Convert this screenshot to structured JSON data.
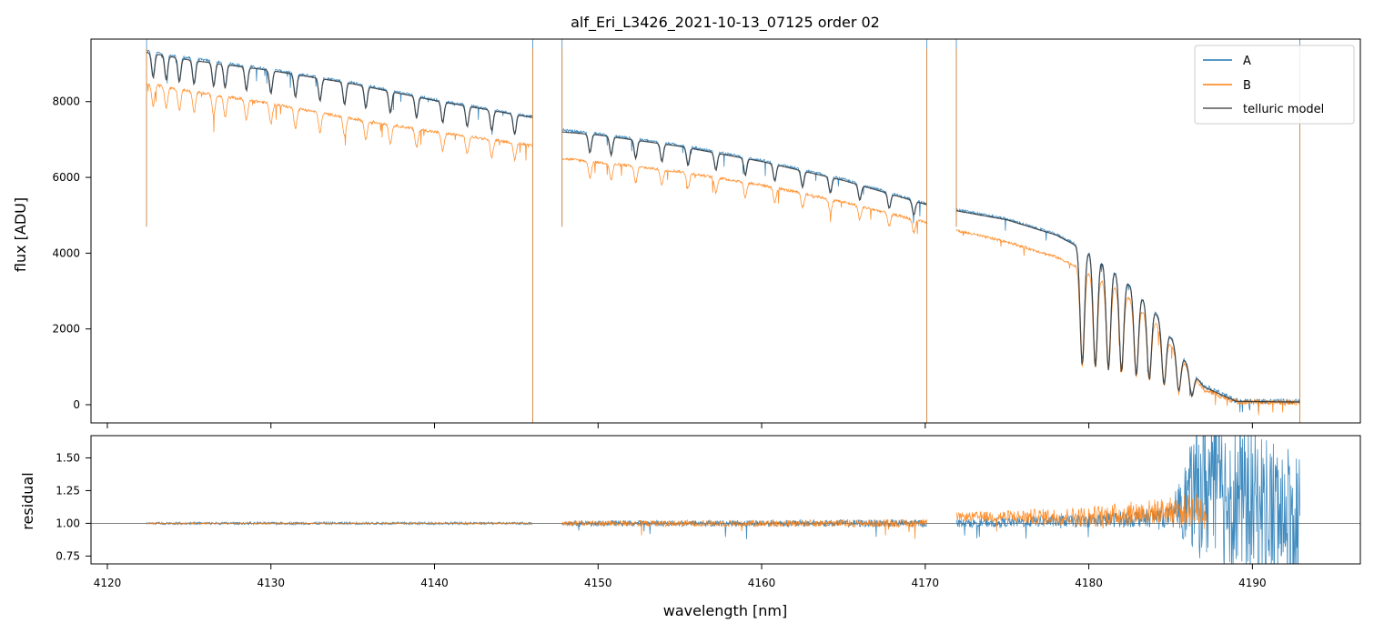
{
  "chart_data": [
    {
      "type": "line",
      "title": "alf_Eri_L3426_2021-10-13_07125  order 02",
      "xlabel": "",
      "ylabel": "flux [ADU]",
      "xlim": [
        4119,
        4196.6
      ],
      "ylim": [
        -480,
        9650
      ],
      "yticks": [
        0,
        2000,
        4000,
        6000,
        8000
      ],
      "ytick_labels": [
        "0",
        "2000",
        "4000",
        "6000",
        "8000"
      ],
      "xticks": [
        4120,
        4130,
        4140,
        4150,
        4160,
        4170,
        4180,
        4190
      ],
      "legend": {
        "location": "top-right",
        "entries": [
          "A",
          "B",
          "telluric model"
        ]
      },
      "colors": {
        "A": "#1f77b4",
        "B": "#ff7f0e",
        "telluric model": "#333333"
      },
      "segments": [
        [
          4122.4,
          4146.0
        ],
        [
          4147.8,
          4170.1
        ],
        [
          4171.9,
          4192.9
        ]
      ],
      "series": [
        {
          "name": "A",
          "x": [
            4122.4,
            4125,
            4130,
            4135,
            4140,
            4146.0,
            4147.8,
            4150,
            4155,
            4160,
            4165,
            4170.1,
            4171.9,
            4175,
            4178,
            4180,
            4182,
            4184,
            4186,
            4187,
            4189,
            4192.9
          ],
          "values": [
            9350,
            9150,
            8850,
            8500,
            8050,
            7600,
            7250,
            7150,
            6850,
            6450,
            5950,
            5300,
            5150,
            4900,
            4500,
            4050,
            3400,
            2500,
            1100,
            500,
            100,
            80
          ]
        },
        {
          "name": "B",
          "x": [
            4122.4,
            4125,
            4130,
            4135,
            4140,
            4146.0,
            4147.8,
            4150,
            4155,
            4160,
            4165,
            4170.1,
            4171.9,
            4175,
            4178,
            4180,
            4182,
            4184,
            4186,
            4187,
            4189,
            4192.9
          ],
          "values": [
            8480,
            8280,
            7950,
            7550,
            7200,
            6850,
            6500,
            6400,
            6150,
            5800,
            5350,
            4800,
            4600,
            4300,
            3900,
            3500,
            3000,
            2200,
            1000,
            400,
            80,
            60
          ]
        },
        {
          "name": "telluric model",
          "x": [
            4122.4,
            4125,
            4130,
            4135,
            4140,
            4146.0,
            4147.8,
            4150,
            4155,
            4160,
            4165,
            4170.1,
            4171.9,
            4175,
            4178,
            4180,
            4182,
            4184,
            4186,
            4187,
            4189,
            4192.9
          ],
          "values": [
            9300,
            9100,
            8820,
            8470,
            8030,
            7580,
            7200,
            7120,
            6820,
            6420,
            5920,
            5280,
            5120,
            4880,
            4480,
            4020,
            3380,
            2480,
            1080,
            480,
            90,
            70
          ]
        }
      ],
      "absorption_lines_nm": [
        4122.8,
        4123.6,
        4124.4,
        4125.3,
        4126.5,
        4127.2,
        4128.5,
        4130.0,
        4131.5,
        4133.0,
        4134.5,
        4135.8,
        4137.3,
        4138.9,
        4140.5,
        4142.0,
        4143.5,
        4144.9,
        4149.5,
        4150.8,
        4152.3,
        4153.9,
        4155.5,
        4157.2,
        4159.0,
        4160.8,
        4162.5,
        4164.2,
        4166.0,
        4167.8,
        4169.3,
        4179.6,
        4180.4,
        4181.2,
        4182.0,
        4182.9,
        4183.7,
        4184.6,
        4185.5,
        4186.3
      ]
    },
    {
      "type": "line",
      "title": "",
      "xlabel": "wavelength [nm]",
      "ylabel": "residual",
      "xlim": [
        4119,
        4196.6
      ],
      "ylim": [
        0.69,
        1.67
      ],
      "yticks": [
        0.75,
        1.0,
        1.25,
        1.5
      ],
      "ytick_labels": [
        "0.75",
        "1.00",
        "1.25",
        "1.50"
      ],
      "xticks": [
        4120,
        4130,
        4140,
        4150,
        4160,
        4170,
        4180,
        4190
      ],
      "xtick_labels": [
        "4120",
        "4130",
        "4140",
        "4150",
        "4160",
        "4170",
        "4180",
        "4190"
      ],
      "reference_line": 1.0,
      "series": [
        {
          "name": "A",
          "x": [
            4122.4,
            4146.0,
            4147.8,
            4170.1,
            4171.9,
            4180,
            4185,
            4187,
            4192.9
          ],
          "values": [
            1.0,
            1.0,
            1.0,
            1.0,
            1.0,
            1.02,
            1.05,
            1.3,
            1.0
          ],
          "scatter_amplitude": [
            0.01,
            0.01,
            0.02,
            0.03,
            0.03,
            0.05,
            0.08,
            0.6,
            0.6
          ]
        },
        {
          "name": "B",
          "x": [
            4122.4,
            4146.0,
            4147.8,
            4170.1,
            4171.9,
            4180,
            4185,
            4187
          ],
          "values": [
            1.0,
            1.0,
            1.0,
            1.0,
            1.05,
            1.05,
            1.1,
            1.1
          ],
          "scatter_amplitude": [
            0.005,
            0.005,
            0.02,
            0.03,
            0.03,
            0.08,
            0.1,
            0.15
          ]
        }
      ]
    }
  ]
}
